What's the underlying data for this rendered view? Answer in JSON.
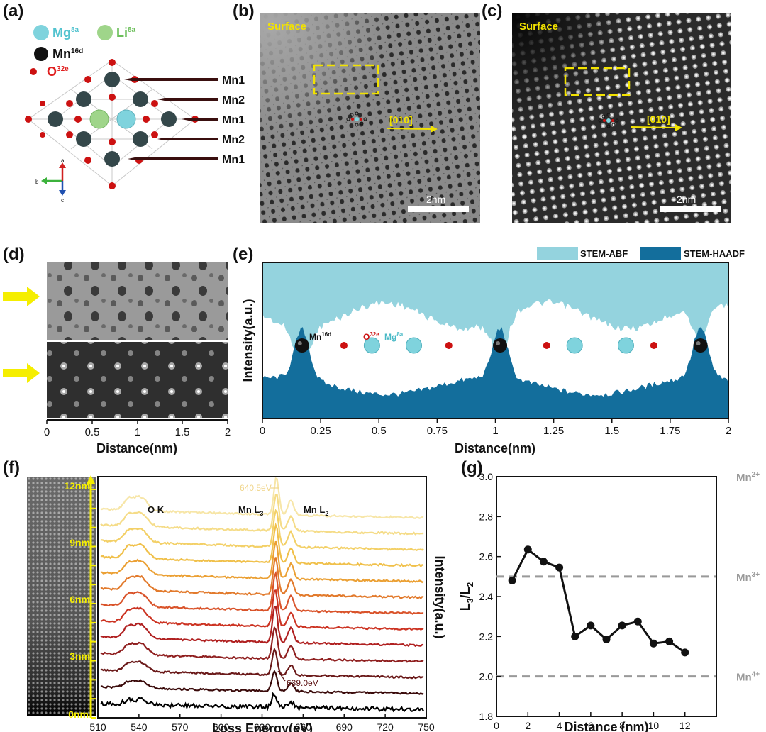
{
  "panels": {
    "a": "(a)",
    "b": "(b)",
    "c": "(c)",
    "d": "(d)",
    "e": "(e)",
    "f": "(f)",
    "g": "(g)"
  },
  "panel_a": {
    "legend": {
      "mg": "Mg",
      "mg_sup": "8a",
      "li": "Li",
      "li_sup": "8a",
      "mn": "Mn",
      "mn_sup": "16d",
      "o": "O",
      "o_sup": "32e"
    },
    "layer_labels": [
      "Mn1",
      "Mn2",
      "Mn1",
      "Mn2",
      "Mn1"
    ],
    "axes": {
      "a": "a",
      "b": "b",
      "c": "c"
    },
    "colors": {
      "mg": "#7fd3dd",
      "li": "#9fd58a",
      "mn": "#34474a",
      "o": "#cc1111"
    }
  },
  "panel_b": {
    "surface": "Surface",
    "direction": "[010]",
    "scale": "2nm"
  },
  "panel_c": {
    "surface": "Surface",
    "direction": "[010]",
    "scale": "2nm"
  },
  "panel_d": {
    "xlabel": "Distance(nm)",
    "ticks": [
      "0",
      "0.5",
      "1",
      "1.5",
      "2"
    ]
  },
  "panel_e": {
    "legend": [
      "STEM-ABF",
      "STEM-HAADF"
    ],
    "colors": {
      "abf": "#94d3de",
      "haadf": "#136e9c"
    },
    "ylabel": "Intensity(a.u.)",
    "xlabel": "Distance(nm)",
    "ticks": [
      "0",
      "0.25",
      "0.5",
      "0.75",
      "1",
      "1.25",
      "1.5",
      "1.75",
      "2"
    ],
    "atom_labels": {
      "mn": "Mn",
      "mn_sup": "16d",
      "o": "O",
      "o_sup": "32e",
      "mg": "Mg",
      "mg_sup": "8a"
    },
    "atoms": [
      {
        "type": "mn",
        "pos": 0.17
      },
      {
        "type": "o",
        "pos": 0.35
      },
      {
        "type": "mg",
        "pos": 0.47
      },
      {
        "type": "mg",
        "pos": 0.65
      },
      {
        "type": "o",
        "pos": 0.8
      },
      {
        "type": "mn",
        "pos": 1.02
      },
      {
        "type": "o",
        "pos": 1.22
      },
      {
        "type": "mg",
        "pos": 1.34
      },
      {
        "type": "mg",
        "pos": 1.56
      },
      {
        "type": "o",
        "pos": 1.68
      },
      {
        "type": "mn",
        "pos": 1.88
      }
    ]
  },
  "panel_f": {
    "xlabel": "Loss Energy(eV)",
    "ylabel": "Intensity(a.u.)",
    "ticks": [
      "510",
      "540",
      "570",
      "600",
      "630",
      "660",
      "690",
      "720",
      "750"
    ],
    "depth_labels": [
      "12nm",
      "9nm",
      "6nm",
      "3nm",
      "0nm"
    ],
    "annotations": {
      "ok": "O K",
      "mnl3": "Mn L",
      "mnl3_sub": "3",
      "mnl2": "Mn L",
      "mnl2_sub": "2",
      "peak_top": "640.5eV",
      "peak_bottom": "639.0eV"
    },
    "spectra_colors": [
      "#000000",
      "#3a0a0a",
      "#6b1a1a",
      "#8f1f1f",
      "#b02020",
      "#cc3322",
      "#d9532a",
      "#e27a2c",
      "#eba034",
      "#f0c04a",
      "#f3d067",
      "#f5dc88",
      "#f7e6a8"
    ]
  },
  "chart_data": {
    "type": "line",
    "title": "",
    "xlabel": "Distance (nm)",
    "ylabel": "L3/L2",
    "xlim": [
      0,
      14
    ],
    "ylim": [
      1.8,
      3.0
    ],
    "xticks": [
      "0",
      "2",
      "4",
      "6",
      "8",
      "10",
      "12"
    ],
    "yticks": [
      "1.8",
      "2.0",
      "2.2",
      "2.4",
      "2.6",
      "2.8",
      "3.0"
    ],
    "x": [
      1,
      2,
      3,
      4,
      5,
      6,
      7,
      8,
      9,
      10,
      11,
      12
    ],
    "values": [
      2.48,
      2.635,
      2.575,
      2.545,
      2.2,
      2.255,
      2.185,
      2.255,
      2.275,
      2.165,
      2.175,
      2.12
    ],
    "reference_lines": [
      {
        "label": "Mn2+",
        "value": 3.0
      },
      {
        "label": "Mn3+",
        "value": 2.5
      },
      {
        "label": "Mn4+",
        "value": 2.0
      }
    ]
  }
}
